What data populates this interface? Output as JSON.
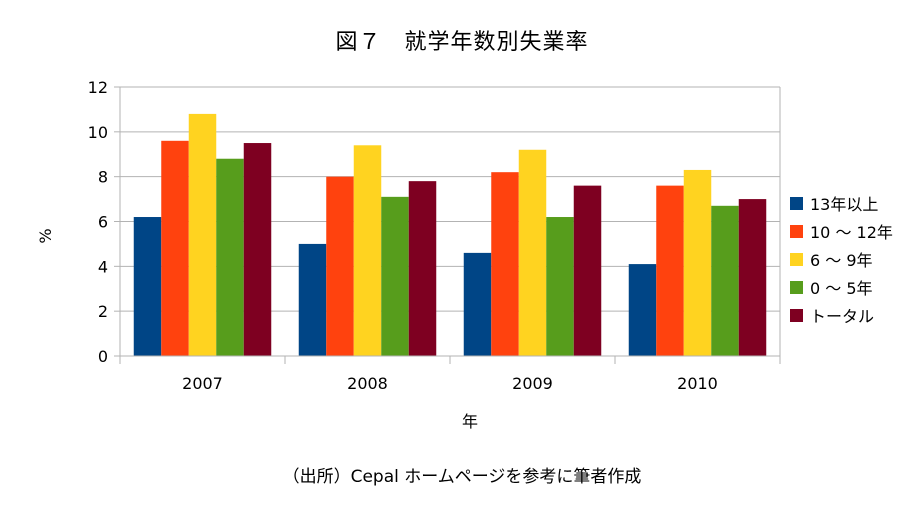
{
  "chart_data": {
    "type": "bar",
    "title": "図７　就学年数別失業率",
    "xlabel": "年",
    "ylabel": "%",
    "ylim": [
      0,
      12
    ],
    "yticks": [
      0,
      2,
      4,
      6,
      8,
      10,
      12
    ],
    "grid": true,
    "legend_position": "right",
    "categories": [
      "2007",
      "2008",
      "2009",
      "2010"
    ],
    "series": [
      {
        "name": "13年以上",
        "color": "#004586",
        "values": [
          6.2,
          5.0,
          4.6,
          4.1
        ]
      },
      {
        "name": "10 ～ 12年",
        "color": "#ff420e",
        "values": [
          9.6,
          8.0,
          8.2,
          7.6
        ]
      },
      {
        "name": "6 ～ 9年",
        "color": "#ffd320",
        "values": [
          10.8,
          9.4,
          9.2,
          8.3
        ]
      },
      {
        "name": "0 ～ 5年",
        "color": "#579d1c",
        "values": [
          8.8,
          7.1,
          6.2,
          6.7
        ]
      },
      {
        "name": "トータル",
        "color": "#7e0021",
        "values": [
          9.5,
          7.8,
          7.6,
          7.0
        ]
      }
    ],
    "source": "（出所）Cepal ホームページを参考に筆者作成"
  }
}
